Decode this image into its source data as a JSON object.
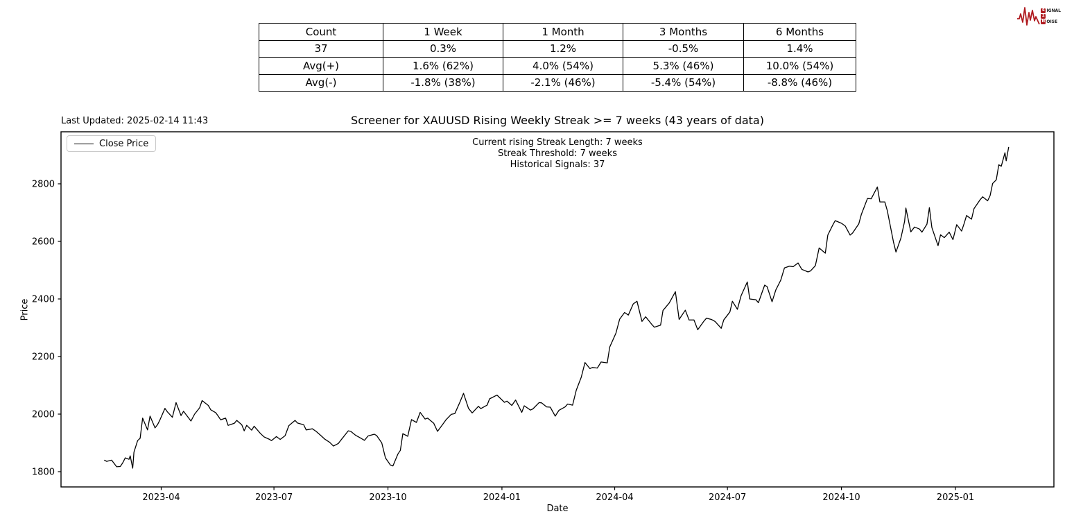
{
  "table": {
    "headers": [
      "Count",
      "1 Week",
      "1 Month",
      "3 Months",
      "6 Months"
    ],
    "rows": [
      [
        "37",
        "0.3%",
        "1.2%",
        "-0.5%",
        "1.4%"
      ],
      [
        "Avg(+)",
        "1.6% (62%)",
        "4.0% (54%)",
        "5.3% (46%)",
        "10.0% (54%)"
      ],
      [
        "Avg(-)",
        "-1.8% (38%)",
        "-2.1% (46%)",
        "-5.4% (54%)",
        "-8.8% (46%)"
      ]
    ]
  },
  "header": {
    "last_updated": "Last Updated: 2025-02-14 11:43",
    "title": "Screener for XAUUSD Rising Weekly Streak >= 7 weeks (43 years of data)"
  },
  "annotations": {
    "line1": "Current rising Streak Length: 7 weeks",
    "line2": "Streak Threshold: 7 weeks",
    "line3": "Historical Signals: 37"
  },
  "legend": {
    "label": "Close Price"
  },
  "logo": {
    "s1": "S",
    "r1": "IGNAL",
    "s2": "2",
    "r2": "",
    "s3": "N",
    "r3": "OISE"
  },
  "colors": {
    "line": "#000000",
    "accent_red": "#b01b20",
    "legend_border": "#c9c9c9"
  },
  "chart_data": {
    "type": "line",
    "title": "Screener for XAUUSD Rising Weekly Streak >= 7 weeks (43 years of data)",
    "xlabel": "Date",
    "ylabel": "Price",
    "legend_position": "upper left",
    "grid": false,
    "x_tick_labels": [
      "2023-04",
      "2023-07",
      "2023-10",
      "2024-01",
      "2024-04",
      "2024-07",
      "2024-10",
      "2025-01"
    ],
    "y_tick_labels": [
      1800,
      2000,
      2200,
      2400,
      2600,
      2800
    ],
    "ylim": [
      1763,
      2997
    ],
    "x_range": [
      "2023-02-14",
      "2025-02-13"
    ],
    "series": [
      {
        "name": "Close Price",
        "points": [
          [
            "2023-02-14",
            1840
          ],
          [
            "2023-02-16",
            1836
          ],
          [
            "2023-02-20",
            1840
          ],
          [
            "2023-02-24",
            1817
          ],
          [
            "2023-02-27",
            1818
          ],
          [
            "2023-03-01",
            1831
          ],
          [
            "2023-03-03",
            1848
          ],
          [
            "2023-03-06",
            1843
          ],
          [
            "2023-03-07",
            1855
          ],
          [
            "2023-03-09",
            1812
          ],
          [
            "2023-03-10",
            1868
          ],
          [
            "2023-03-13",
            1908
          ],
          [
            "2023-03-15",
            1916
          ],
          [
            "2023-03-17",
            1986
          ],
          [
            "2023-03-21",
            1945
          ],
          [
            "2023-03-23",
            1993
          ],
          [
            "2023-03-27",
            1952
          ],
          [
            "2023-03-29",
            1963
          ],
          [
            "2023-03-31",
            1980
          ],
          [
            "2023-04-04",
            2020
          ],
          [
            "2023-04-06",
            2008
          ],
          [
            "2023-04-10",
            1989
          ],
          [
            "2023-04-13",
            2040
          ],
          [
            "2023-04-17",
            1995
          ],
          [
            "2023-04-19",
            2010
          ],
          [
            "2023-04-25",
            1976
          ],
          [
            "2023-04-28",
            2000
          ],
          [
            "2023-05-02",
            2022
          ],
          [
            "2023-05-04",
            2047
          ],
          [
            "2023-05-09",
            2030
          ],
          [
            "2023-05-11",
            2015
          ],
          [
            "2023-05-15",
            2005
          ],
          [
            "2023-05-17",
            1993
          ],
          [
            "2023-05-19",
            1980
          ],
          [
            "2023-05-23",
            1986
          ],
          [
            "2023-05-25",
            1961
          ],
          [
            "2023-05-30",
            1968
          ],
          [
            "2023-06-01",
            1978
          ],
          [
            "2023-06-05",
            1963
          ],
          [
            "2023-06-07",
            1942
          ],
          [
            "2023-06-09",
            1961
          ],
          [
            "2023-06-13",
            1944
          ],
          [
            "2023-06-15",
            1958
          ],
          [
            "2023-06-20",
            1933
          ],
          [
            "2023-06-23",
            1921
          ],
          [
            "2023-06-27",
            1913
          ],
          [
            "2023-06-29",
            1908
          ],
          [
            "2023-07-03",
            1922
          ],
          [
            "2023-07-06",
            1912
          ],
          [
            "2023-07-10",
            1925
          ],
          [
            "2023-07-13",
            1960
          ],
          [
            "2023-07-18",
            1978
          ],
          [
            "2023-07-20",
            1969
          ],
          [
            "2023-07-25",
            1963
          ],
          [
            "2023-07-27",
            1945
          ],
          [
            "2023-08-01",
            1949
          ],
          [
            "2023-08-04",
            1940
          ],
          [
            "2023-08-08",
            1925
          ],
          [
            "2023-08-11",
            1913
          ],
          [
            "2023-08-15",
            1902
          ],
          [
            "2023-08-18",
            1889
          ],
          [
            "2023-08-22",
            1898
          ],
          [
            "2023-08-25",
            1915
          ],
          [
            "2023-08-30",
            1942
          ],
          [
            "2023-09-01",
            1940
          ],
          [
            "2023-09-05",
            1926
          ],
          [
            "2023-09-08",
            1919
          ],
          [
            "2023-09-12",
            1909
          ],
          [
            "2023-09-15",
            1924
          ],
          [
            "2023-09-20",
            1930
          ],
          [
            "2023-09-22",
            1925
          ],
          [
            "2023-09-26",
            1900
          ],
          [
            "2023-09-29",
            1848
          ],
          [
            "2023-10-03",
            1823
          ],
          [
            "2023-10-05",
            1820
          ],
          [
            "2023-10-09",
            1861
          ],
          [
            "2023-10-11",
            1874
          ],
          [
            "2023-10-13",
            1932
          ],
          [
            "2023-10-17",
            1923
          ],
          [
            "2023-10-20",
            1981
          ],
          [
            "2023-10-24",
            1971
          ],
          [
            "2023-10-27",
            2006
          ],
          [
            "2023-10-31",
            1983
          ],
          [
            "2023-11-02",
            1986
          ],
          [
            "2023-11-07",
            1968
          ],
          [
            "2023-11-10",
            1940
          ],
          [
            "2023-11-14",
            1963
          ],
          [
            "2023-11-17",
            1981
          ],
          [
            "2023-11-21",
            1999
          ],
          [
            "2023-11-24",
            2002
          ],
          [
            "2023-11-28",
            2041
          ],
          [
            "2023-12-01",
            2072
          ],
          [
            "2023-12-05",
            2020
          ],
          [
            "2023-12-08",
            2004
          ],
          [
            "2023-12-13",
            2027
          ],
          [
            "2023-12-15",
            2019
          ],
          [
            "2023-12-20",
            2031
          ],
          [
            "2023-12-22",
            2053
          ],
          [
            "2023-12-28",
            2066
          ],
          [
            "2024-01-03",
            2041
          ],
          [
            "2024-01-05",
            2045
          ],
          [
            "2024-01-09",
            2030
          ],
          [
            "2024-01-12",
            2049
          ],
          [
            "2024-01-17",
            2006
          ],
          [
            "2024-01-19",
            2029
          ],
          [
            "2024-01-24",
            2014
          ],
          [
            "2024-01-26",
            2018
          ],
          [
            "2024-01-31",
            2040
          ],
          [
            "2024-02-02",
            2039
          ],
          [
            "2024-02-06",
            2025
          ],
          [
            "2024-02-09",
            2024
          ],
          [
            "2024-02-13",
            1993
          ],
          [
            "2024-02-16",
            2013
          ],
          [
            "2024-02-21",
            2025
          ],
          [
            "2024-02-23",
            2035
          ],
          [
            "2024-02-27",
            2031
          ],
          [
            "2024-03-01",
            2083
          ],
          [
            "2024-03-05",
            2128
          ],
          [
            "2024-03-08",
            2179
          ],
          [
            "2024-03-12",
            2158
          ],
          [
            "2024-03-14",
            2162
          ],
          [
            "2024-03-18",
            2160
          ],
          [
            "2024-03-21",
            2181
          ],
          [
            "2024-03-26",
            2178
          ],
          [
            "2024-03-28",
            2233
          ],
          [
            "2024-04-02",
            2281
          ],
          [
            "2024-04-05",
            2330
          ],
          [
            "2024-04-09",
            2353
          ],
          [
            "2024-04-12",
            2344
          ],
          [
            "2024-04-16",
            2383
          ],
          [
            "2024-04-19",
            2392
          ],
          [
            "2024-04-23",
            2322
          ],
          [
            "2024-04-26",
            2338
          ],
          [
            "2024-05-01",
            2311
          ],
          [
            "2024-05-03",
            2302
          ],
          [
            "2024-05-08",
            2309
          ],
          [
            "2024-05-10",
            2360
          ],
          [
            "2024-05-15",
            2386
          ],
          [
            "2024-05-20",
            2425
          ],
          [
            "2024-05-23",
            2329
          ],
          [
            "2024-05-28",
            2361
          ],
          [
            "2024-05-31",
            2327
          ],
          [
            "2024-06-04",
            2327
          ],
          [
            "2024-06-07",
            2293
          ],
          [
            "2024-06-12",
            2323
          ],
          [
            "2024-06-14",
            2333
          ],
          [
            "2024-06-18",
            2329
          ],
          [
            "2024-06-21",
            2322
          ],
          [
            "2024-06-26",
            2298
          ],
          [
            "2024-06-28",
            2327
          ],
          [
            "2024-07-03",
            2355
          ],
          [
            "2024-07-05",
            2392
          ],
          [
            "2024-07-09",
            2364
          ],
          [
            "2024-07-12",
            2411
          ],
          [
            "2024-07-17",
            2459
          ],
          [
            "2024-07-19",
            2400
          ],
          [
            "2024-07-24",
            2397
          ],
          [
            "2024-07-26",
            2387
          ],
          [
            "2024-07-31",
            2448
          ],
          [
            "2024-08-02",
            2443
          ],
          [
            "2024-08-06",
            2390
          ],
          [
            "2024-08-09",
            2431
          ],
          [
            "2024-08-13",
            2465
          ],
          [
            "2024-08-16",
            2508
          ],
          [
            "2024-08-20",
            2514
          ],
          [
            "2024-08-23",
            2512
          ],
          [
            "2024-08-27",
            2525
          ],
          [
            "2024-08-30",
            2503
          ],
          [
            "2024-09-04",
            2494
          ],
          [
            "2024-09-06",
            2497
          ],
          [
            "2024-09-10",
            2516
          ],
          [
            "2024-09-13",
            2577
          ],
          [
            "2024-09-18",
            2559
          ],
          [
            "2024-09-20",
            2622
          ],
          [
            "2024-09-24",
            2657
          ],
          [
            "2024-09-26",
            2672
          ],
          [
            "2024-10-01",
            2663
          ],
          [
            "2024-10-04",
            2654
          ],
          [
            "2024-10-08",
            2622
          ],
          [
            "2024-10-10",
            2629
          ],
          [
            "2024-10-15",
            2661
          ],
          [
            "2024-10-17",
            2693
          ],
          [
            "2024-10-22",
            2749
          ],
          [
            "2024-10-25",
            2748
          ],
          [
            "2024-10-30",
            2789
          ],
          [
            "2024-11-01",
            2737
          ],
          [
            "2024-11-05",
            2737
          ],
          [
            "2024-11-07",
            2707
          ],
          [
            "2024-11-12",
            2598
          ],
          [
            "2024-11-14",
            2563
          ],
          [
            "2024-11-18",
            2611
          ],
          [
            "2024-11-21",
            2670
          ],
          [
            "2024-11-22",
            2716
          ],
          [
            "2024-11-26",
            2633
          ],
          [
            "2024-11-29",
            2650
          ],
          [
            "2024-12-03",
            2643
          ],
          [
            "2024-12-05",
            2632
          ],
          [
            "2024-12-09",
            2660
          ],
          [
            "2024-12-11",
            2717
          ],
          [
            "2024-12-13",
            2648
          ],
          [
            "2024-12-18",
            2585
          ],
          [
            "2024-12-20",
            2623
          ],
          [
            "2024-12-23",
            2613
          ],
          [
            "2024-12-27",
            2632
          ],
          [
            "2024-12-30",
            2606
          ],
          [
            "2025-01-02",
            2658
          ],
          [
            "2025-01-06",
            2636
          ],
          [
            "2025-01-08",
            2662
          ],
          [
            "2025-01-10",
            2690
          ],
          [
            "2025-01-14",
            2677
          ],
          [
            "2025-01-16",
            2714
          ],
          [
            "2025-01-21",
            2745
          ],
          [
            "2025-01-23",
            2755
          ],
          [
            "2025-01-27",
            2741
          ],
          [
            "2025-01-29",
            2759
          ],
          [
            "2025-01-31",
            2801
          ],
          [
            "2025-02-03",
            2814
          ],
          [
            "2025-02-05",
            2866
          ],
          [
            "2025-02-07",
            2861
          ],
          [
            "2025-02-10",
            2908
          ],
          [
            "2025-02-11",
            2880
          ],
          [
            "2025-02-13",
            2928
          ]
        ]
      }
    ]
  }
}
